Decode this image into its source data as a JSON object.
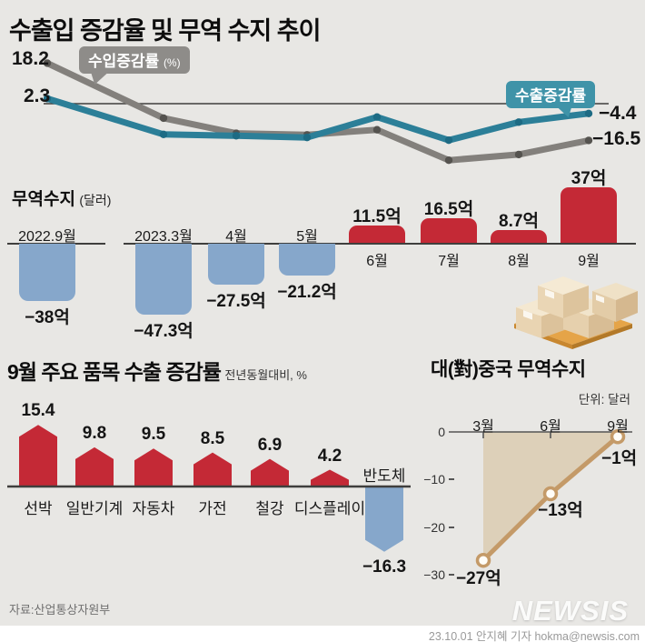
{
  "header": {
    "title": "수출입 증감율 및 무역 수지 추이"
  },
  "colors": {
    "background": "#e8e7e4",
    "export_line": "#2c7f98",
    "import_line": "#83807c",
    "export_tooltip": "#3f93a8",
    "import_tooltip": "#8e8c89",
    "positive_bar": "#c42936",
    "negative_bar": "#86a7cb",
    "china_line": "#c49a68",
    "china_fill": "#ddd0b9",
    "axis": "#3f3f3d"
  },
  "chart_data": [
    {
      "id": "growth-lines",
      "type": "line",
      "x": [
        "2022.9월",
        "2023.3월",
        "4월",
        "5월",
        "6월",
        "7월",
        "8월",
        "9월"
      ],
      "series": [
        {
          "name": "수입증감률",
          "unit": "(%)",
          "color": "#83807c",
          "dot_color": "#55534f",
          "values": [
            18.2,
            -6.5,
            -13.3,
            -14.0,
            -11.7,
            -25.4,
            -22.8,
            -16.5
          ]
        },
        {
          "name": "수출증감률",
          "unit": "",
          "color": "#2c7f98",
          "dot_color": "#1d6b84",
          "values": [
            2.3,
            -13.8,
            -14.4,
            -15.2,
            -6.0,
            -16.4,
            -8.3,
            -4.4
          ]
        }
      ],
      "point_labels": {
        "import_start": "18.2",
        "export_start": "2.3",
        "export_end": "−4.4",
        "import_end": "−16.5"
      },
      "ylim": [
        -30,
        20
      ],
      "grid": "zero-line-only",
      "legend_position": "inline-tooltips"
    },
    {
      "id": "trade-balance",
      "type": "bar",
      "title": "무역수지",
      "unit": "(달러)",
      "categories": [
        "2022.9월",
        "2023.3월",
        "4월",
        "5월",
        "6월",
        "7월",
        "8월",
        "9월"
      ],
      "values": [
        -38,
        -47.3,
        -27.5,
        -21.2,
        11.5,
        16.5,
        8.7,
        37
      ],
      "labels": [
        "−38억",
        "−47.3억",
        "−27.5억",
        "−21.2억",
        "11.5억",
        "16.5억",
        "8.7억",
        "37억"
      ],
      "axis_break_between": [
        "2022.9월",
        "2023.3월"
      ]
    },
    {
      "id": "item-growth",
      "type": "bar",
      "title": "9월 주요 품목 수출 증감률",
      "subtitle": "전년동월대비, %",
      "categories": [
        "선박",
        "일반기계",
        "자동차",
        "가전",
        "철강",
        "디스플레이",
        "반도체"
      ],
      "values": [
        15.4,
        9.8,
        9.5,
        8.5,
        6.9,
        4.2,
        -16.3
      ],
      "labels": [
        "15.4",
        "9.8",
        "9.5",
        "8.5",
        "6.9",
        "4.2",
        "−16.3"
      ]
    },
    {
      "id": "china-balance",
      "type": "line",
      "title": "대(對)중국 무역수지",
      "unit": "단위: 달러",
      "x": [
        "3월",
        "6월",
        "9월"
      ],
      "values": [
        -27,
        -13,
        -1
      ],
      "labels": [
        "−27억",
        "−13억",
        "−1억"
      ],
      "y_ticks": [
        "0",
        "−10",
        "−20",
        "−30"
      ],
      "ylim": [
        -30,
        0
      ],
      "grid": "off",
      "area_fill": true
    }
  ],
  "footer": {
    "source": "자료:산업통상자원부",
    "logo": "NEWSIS",
    "credit": "23.10.01 안지혜 기자 hokma@newsis.com"
  }
}
